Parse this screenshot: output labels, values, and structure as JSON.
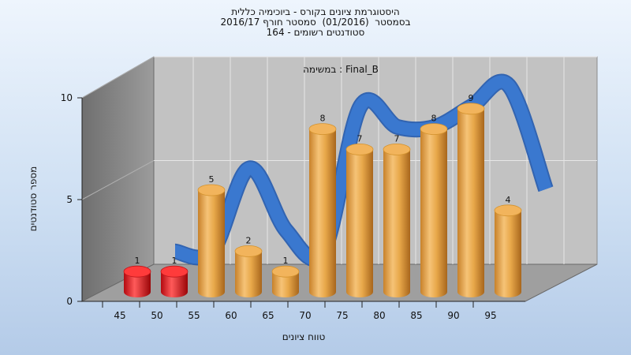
{
  "chart_data": {
    "type": "bar",
    "title_lines": [
      "היסטוגרמת ציונים בקורס - ביוכימיה כללית",
      "בסמסטר  (01/2016)  סמסטר חורף 2016/17",
      "סטודנטים רשומים - 164"
    ],
    "subtitle": "במשימה : Final_B",
    "xlabel": "טווח ציונים",
    "ylabel": "מספר סטודנטים",
    "ylim": [
      0,
      10
    ],
    "yticks": [
      0,
      5,
      10
    ],
    "categories": [
      "45",
      "50",
      "55",
      "60",
      "65",
      "70",
      "75",
      "80",
      "85",
      "90",
      "95"
    ],
    "x_tick_labels": [
      "45",
      "50",
      "55",
      "60",
      "65",
      "70",
      "75",
      "80",
      "85",
      "90",
      "95"
    ],
    "series": [
      {
        "values": [
          1,
          1,
          5,
          2,
          1,
          8,
          7,
          7,
          8,
          9,
          4
        ]
      }
    ],
    "bar_colors": [
      "#e8262c",
      "#e8262c",
      "#e8a84a",
      "#e8a84a",
      "#e8a84a",
      "#e8a84a",
      "#e8a84a",
      "#e8a84a",
      "#e8a84a",
      "#e8a84a",
      "#e8a84a"
    ],
    "trend_color": "#3a78cf",
    "grid": true,
    "legend": "none",
    "style": "3d-cylinders-with-smoothed-trend-band"
  }
}
